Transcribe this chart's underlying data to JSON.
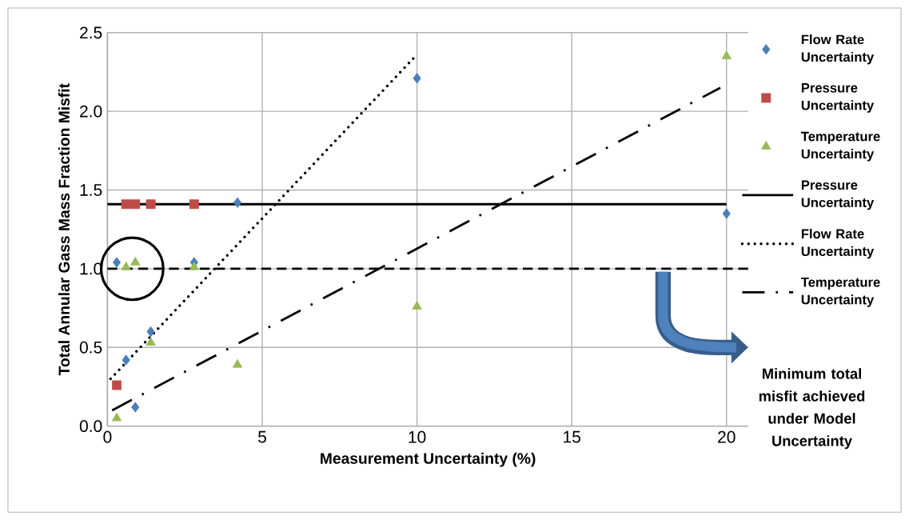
{
  "chart_data": {
    "type": "scatter",
    "xlabel": "Measurement Uncertainty (%)",
    "ylabel": "Total Annular Gass Mass Fraction Misfit",
    "xlim": [
      0,
      20.7
    ],
    "ylim": [
      0,
      2.5
    ],
    "xticks": [
      0,
      5,
      10,
      15,
      20
    ],
    "yticks": [
      {
        "value": 0,
        "label": "0.0"
      },
      {
        "value": 0.5,
        "label": "0.5"
      },
      {
        "value": 1,
        "label": "1.0"
      },
      {
        "value": 1.5,
        "label": "1.5"
      },
      {
        "value": 2,
        "label": "2.0"
      },
      {
        "value": 2.5,
        "label": "2.5"
      }
    ],
    "grid": true,
    "legend": "right",
    "series": [
      {
        "name": "Flow Rate Uncertainty",
        "marker": "diamond",
        "color": "#4a7ebb",
        "x": [
          0.3,
          0.6,
          0.9,
          1.4,
          2.8,
          4.2,
          10,
          20
        ],
        "values": [
          1.04,
          0.42,
          0.12,
          0.6,
          1.04,
          1.42,
          2.21,
          1.35
        ]
      },
      {
        "name": "Pressure Uncertainty",
        "marker": "square",
        "color": "#be4b48",
        "x": [
          0.3,
          0.6,
          0.9,
          1.4,
          2.8
        ],
        "values": [
          0.26,
          1.41,
          1.41,
          1.41,
          1.41
        ]
      },
      {
        "name": "Temperature Uncertainty",
        "marker": "triangle",
        "color": "#98b954",
        "x": [
          0.3,
          0.6,
          0.9,
          1.4,
          2.8,
          4.2,
          10,
          20
        ],
        "values": [
          0.05,
          1.01,
          1.04,
          0.53,
          1.01,
          0.39,
          0.76,
          2.35
        ]
      },
      {
        "name": "Pressure Uncertainty",
        "type": "line",
        "line_style": "solid",
        "color": "#000000",
        "x": [
          0,
          20
        ],
        "values": [
          1.41,
          1.41
        ]
      },
      {
        "name": "Flow Rate Uncertainty",
        "type": "line",
        "line_style": "dotted",
        "color": "#000000",
        "x": [
          0.1,
          9.9
        ],
        "values": [
          0.3,
          2.34
        ]
      },
      {
        "name": "Temperature Uncertainty",
        "type": "line",
        "line_style": "dashdot",
        "color": "#000000",
        "x": [
          0.15,
          19.8
        ],
        "values": [
          0.1,
          2.15
        ]
      }
    ],
    "ref_lines": [
      {
        "axis": "y",
        "value": 1,
        "line_style": "dashed",
        "color": "#000000"
      }
    ],
    "annotations": [
      "Minimum total misfit achieved under Model Uncertainty"
    ]
  }
}
